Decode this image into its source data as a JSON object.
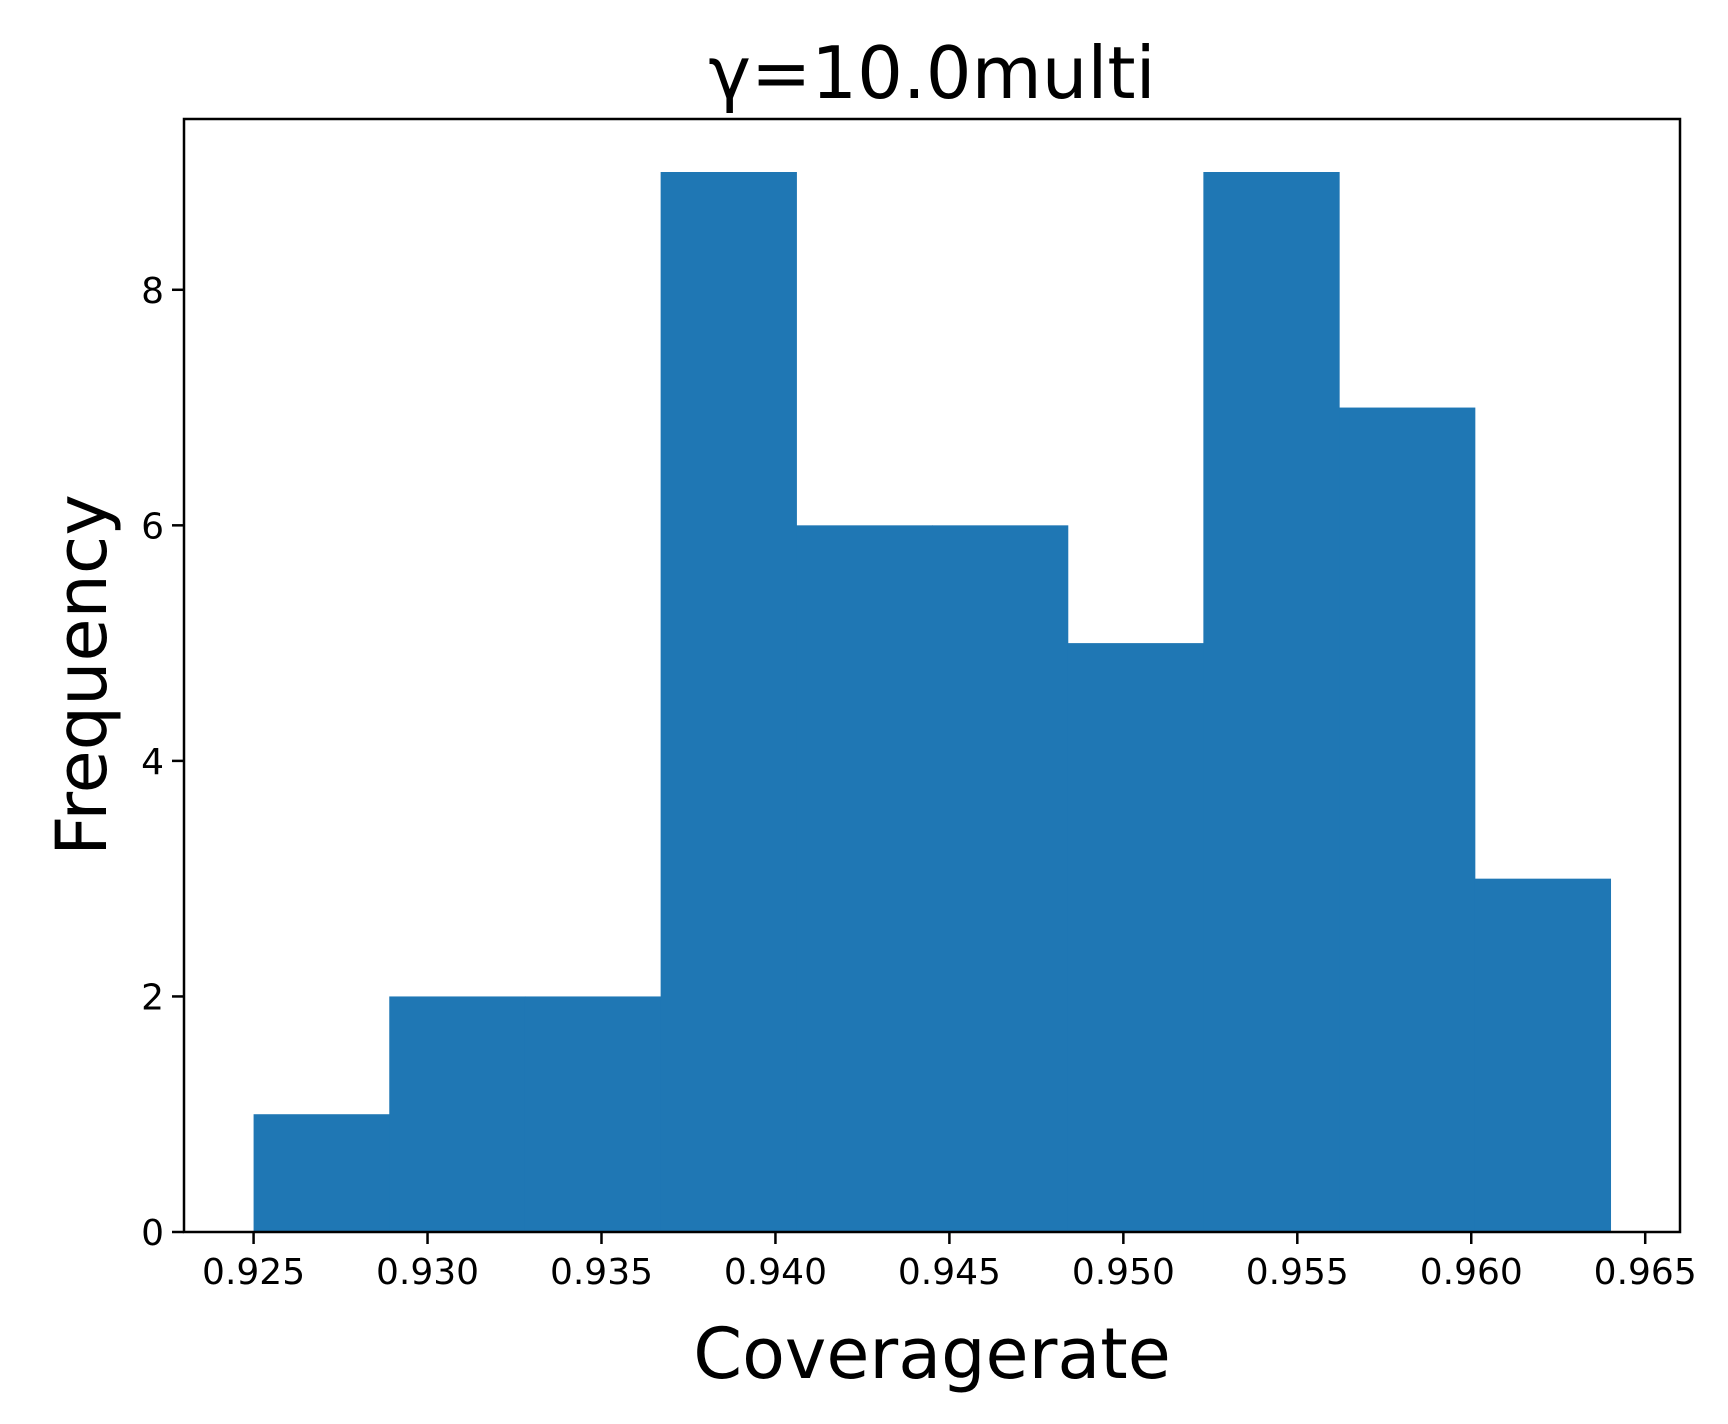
{
  "chart_data": {
    "type": "bar",
    "title": "γ=10.0multi",
    "xlabel": "Coveragerate",
    "ylabel": "Frequency",
    "bin_edges": [
      0.925,
      0.9289,
      0.9328,
      0.9367,
      0.9406,
      0.9445,
      0.9484,
      0.9523,
      0.9562,
      0.9601,
      0.964
    ],
    "values": [
      1,
      2,
      2,
      9,
      6,
      6,
      5,
      9,
      7,
      3
    ],
    "xlim": [
      0.923,
      0.966
    ],
    "ylim": [
      0,
      9.45
    ],
    "xticks": [
      0.925,
      0.93,
      0.935,
      0.94,
      0.945,
      0.95,
      0.955,
      0.96,
      0.965
    ],
    "xtick_labels": [
      "0.925",
      "0.930",
      "0.935",
      "0.940",
      "0.945",
      "0.950",
      "0.955",
      "0.960",
      "0.965"
    ],
    "yticks": [
      0,
      2,
      4,
      6,
      8
    ],
    "ytick_labels": [
      "0",
      "2",
      "4",
      "6",
      "8"
    ],
    "bar_color": "#1f77b4",
    "grid": false,
    "legend": "none"
  }
}
